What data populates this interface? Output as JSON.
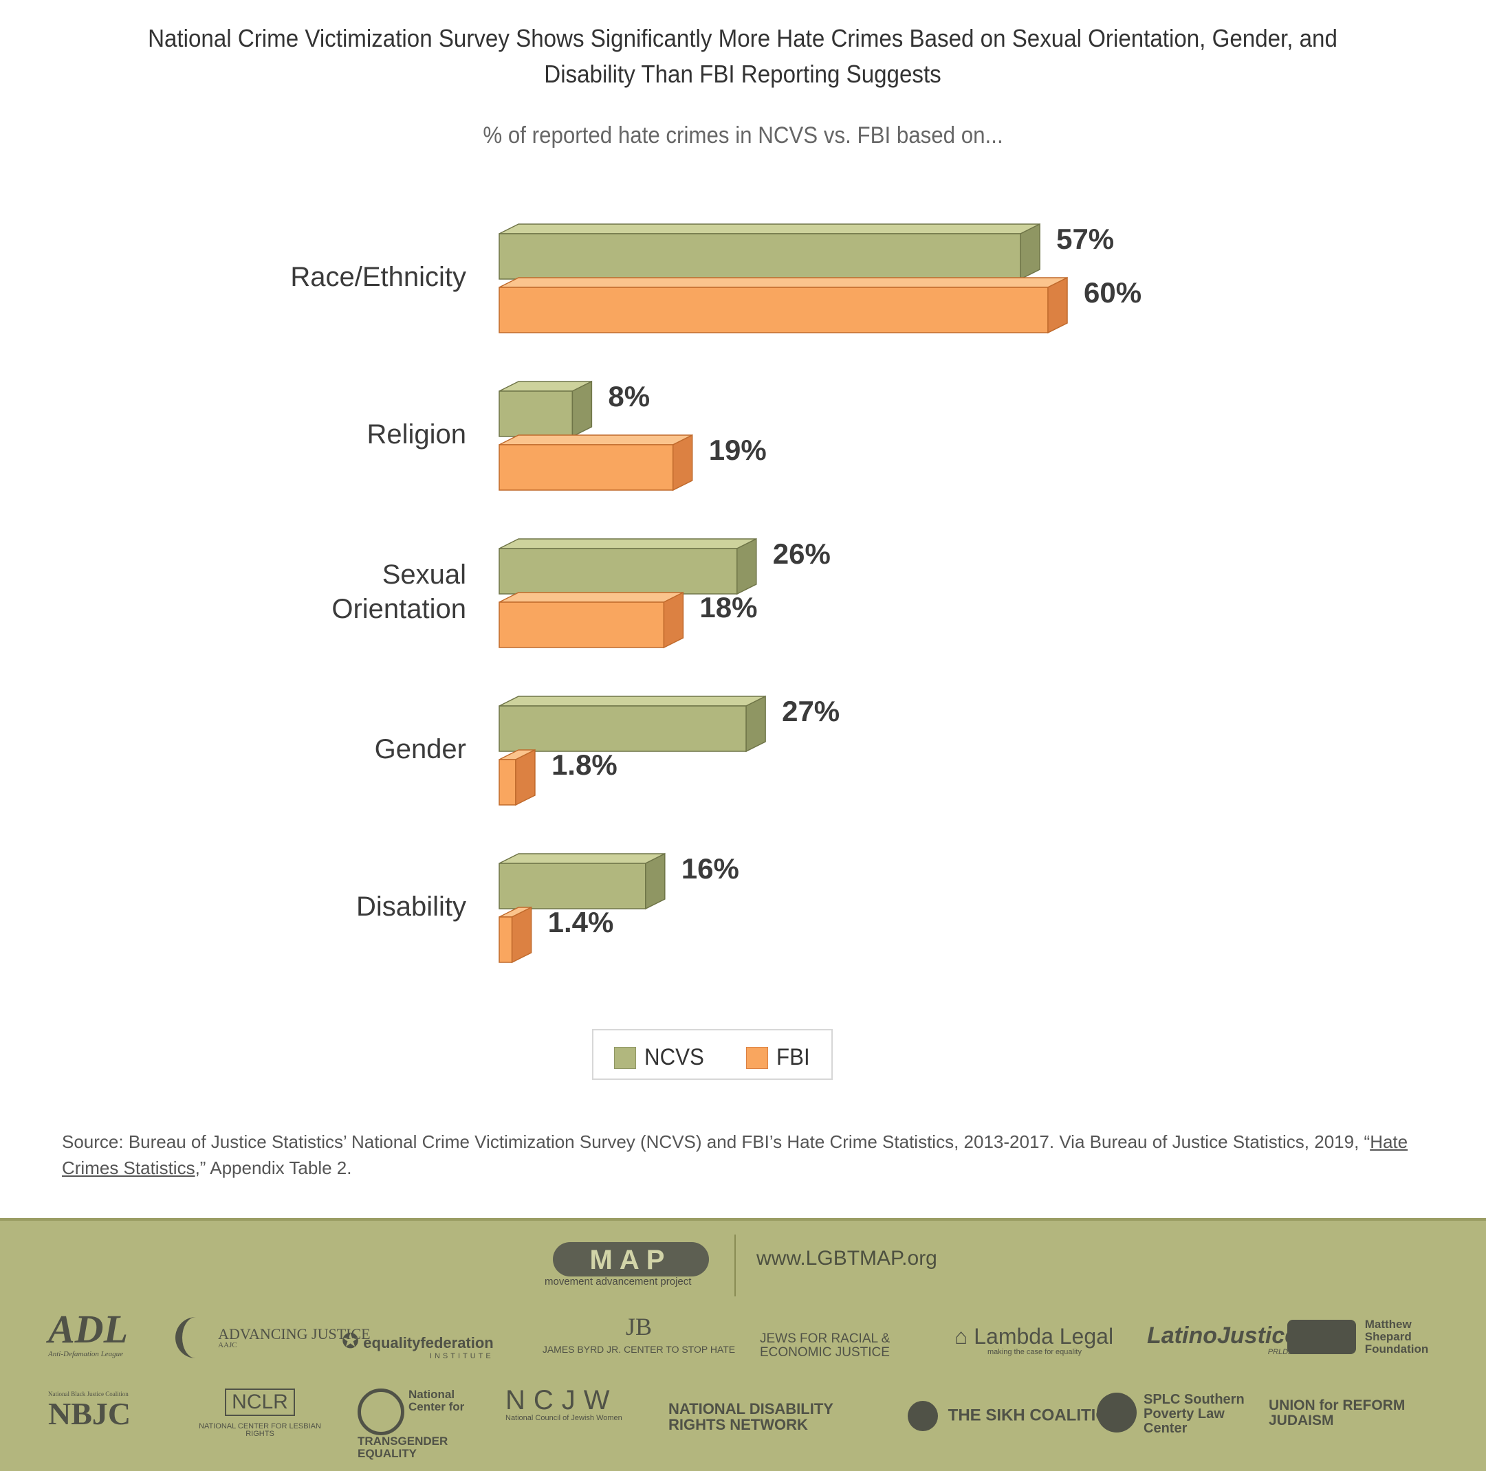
{
  "title_line1": "National Crime Victimization Survey Shows Significantly More Hate Crimes Based on Sexual Orientation, Gender, and",
  "title_line2": "Disability Than FBI Reporting Suggests",
  "subtitle": "% of reported hate crimes in NCVS vs. FBI based on...",
  "colors": {
    "ncvs_front": "#b1b77e",
    "ncvs_top": "#cdd29c",
    "ncvs_side": "#8f9663",
    "ncvs_stroke": "#6f7548",
    "fbi_front": "#f9a65f",
    "fbi_top": "#fbc48d",
    "fbi_side": "#dc8142",
    "fbi_stroke": "#c06a2c"
  },
  "chart_data": {
    "type": "bar",
    "orientation": "horizontal",
    "categories": [
      "Race/Ethnicity",
      "Religion",
      "Sexual Orientation",
      "Gender",
      "Disability"
    ],
    "series": [
      {
        "name": "NCVS",
        "values": [
          57,
          8,
          26,
          27,
          16
        ],
        "labels": [
          "57%",
          "8%",
          "26%",
          "27%",
          "16%"
        ]
      },
      {
        "name": "FBI",
        "values": [
          60,
          19,
          18,
          1.8,
          1.4
        ],
        "labels": [
          "60%",
          "19%",
          "18%",
          "1.8%",
          "1.4%"
        ]
      }
    ],
    "legend": [
      "NCVS",
      "FBI"
    ],
    "legend_position": "bottom"
  },
  "source": {
    "text": "Source: Bureau of Justice Statistics’ National Crime Victimization Survey (NCVS) and FBI’s Hate Crime Statistics, 2013-2017. Via Bureau of Justice Statistics, 2019, “",
    "link": "Hate Crimes Statistics",
    "tail": ",” Appendix Table 2."
  },
  "footer": {
    "map_logo": "MAP",
    "map_tagline": "movement advancement project",
    "url": "www.LGBTMAP.org",
    "partners": [
      "ADL",
      "Anti-Defamation League",
      "ADVANCING JUSTICE",
      "AAJC",
      "equalityfederation",
      "INSTITUTE",
      "JAMES BYRD JR. CENTER TO STOP HATE",
      "JEWS FOR RACIAL & ECONOMIC JUSTICE",
      "Lambda Legal",
      "making the case for equality",
      "LatinoJustice",
      "PRLDEF",
      "Matthew Shepard Foundation",
      "NBJC",
      "National Black Justice Coalition",
      "NCLR",
      "NATIONAL CENTER FOR LESBIAN RIGHTS",
      "National Center for TRANSGENDER EQUALITY",
      "NCJW",
      "National Council of Jewish Women",
      "NATIONAL DISABILITY RIGHTS NETWORK",
      "THE SIKH COALITION",
      "SPLC Southern Poverty Law Center",
      "UNION for REFORM JUDAISM"
    ]
  }
}
